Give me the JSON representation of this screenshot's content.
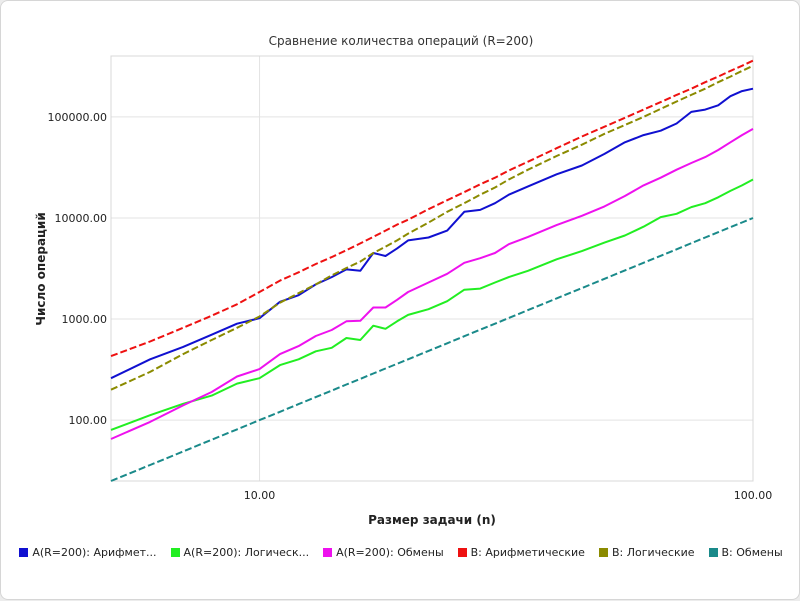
{
  "chart_data": {
    "type": "line",
    "title": "Сравнение количества операций (R=200)",
    "xlabel": "Размер задачи (n)",
    "ylabel": "Число операций",
    "x_scale": "log",
    "y_scale": "log",
    "xlim": [
      5,
      100
    ],
    "ylim": [
      25,
      400000
    ],
    "x_ticks": [
      10,
      100
    ],
    "x_tick_labels": [
      "10.00",
      "100.00"
    ],
    "y_ticks": [
      100,
      1000,
      10000,
      100000
    ],
    "y_tick_labels": [
      "100.00",
      "1000.00",
      "10000.00",
      "100000.00"
    ],
    "grid": true,
    "legend_position": "bottom",
    "x": [
      5,
      6,
      7,
      8,
      9,
      10,
      11,
      12,
      13,
      14,
      15,
      16,
      17,
      18,
      19,
      20,
      22,
      24,
      26,
      28,
      30,
      32,
      35,
      40,
      45,
      50,
      55,
      60,
      65,
      70,
      75,
      80,
      85,
      90,
      95,
      100
    ],
    "series": [
      {
        "name": "A(R=200): Арифмет...",
        "color": "#1010d0",
        "dash": "solid",
        "values": [
          260,
          400,
          530,
          700,
          900,
          1020,
          1480,
          1720,
          2200,
          2600,
          3100,
          3000,
          4500,
          4200,
          5000,
          6000,
          6400,
          7500,
          11500,
          12000,
          14000,
          17000,
          20500,
          27000,
          33000,
          43000,
          56000,
          66000,
          73000,
          86000,
          112000,
          118000,
          130000,
          160000,
          180000,
          190000
        ]
      },
      {
        "name": "A(R=200): Логическ...",
        "color": "#22ee22",
        "dash": "solid",
        "values": [
          80,
          112,
          145,
          175,
          230,
          260,
          350,
          400,
          480,
          520,
          650,
          620,
          860,
          800,
          950,
          1100,
          1250,
          1500,
          1950,
          2000,
          2300,
          2600,
          3000,
          3900,
          4700,
          5700,
          6700,
          8200,
          10200,
          11000,
          12800,
          14000,
          16000,
          18500,
          21000,
          24000
        ]
      },
      {
        "name": "A(R=200): Обмены",
        "color": "#ee11ee",
        "dash": "solid",
        "values": [
          65,
          96,
          140,
          190,
          270,
          320,
          450,
          540,
          680,
          780,
          950,
          960,
          1300,
          1300,
          1550,
          1850,
          2300,
          2800,
          3600,
          4000,
          4500,
          5500,
          6500,
          8500,
          10500,
          13000,
          16500,
          21000,
          25000,
          30000,
          35000,
          40000,
          47000,
          56000,
          66000,
          76000
        ]
      },
      {
        "name": "B: Арифметические",
        "color": "#ee1111",
        "dash": "dashed",
        "values": [
          430,
          600,
          820,
          1080,
          1400,
          1850,
          2400,
          2900,
          3500,
          4100,
          4800,
          5600,
          6500,
          7500,
          8600,
          9600,
          12200,
          15000,
          18000,
          21500,
          25000,
          29500,
          36000,
          49000,
          64000,
          80000,
          98000,
          118000,
          140000,
          165000,
          190000,
          220000,
          250000,
          285000,
          320000,
          360000
        ]
      },
      {
        "name": "B: Логические",
        "color": "#8b8b00",
        "dash": "dashed",
        "values": [
          200,
          300,
          450,
          620,
          820,
          1060,
          1450,
          1800,
          2200,
          2700,
          3200,
          3700,
          4500,
          5200,
          6000,
          7000,
          9000,
          11500,
          14000,
          17000,
          20000,
          24000,
          30000,
          41000,
          53000,
          68000,
          83000,
          100000,
          120000,
          142000,
          165000,
          190000,
          220000,
          250000,
          285000,
          320000
        ]
      },
      {
        "name": "B: Обмены",
        "color": "#1a8a8a",
        "dash": "dashed",
        "values": [
          25,
          36,
          49,
          64,
          81,
          100,
          121,
          144,
          169,
          196,
          225,
          256,
          289,
          324,
          361,
          400,
          484,
          576,
          676,
          784,
          900,
          1024,
          1225,
          1600,
          2025,
          2500,
          3025,
          3600,
          4225,
          4900,
          5625,
          6400,
          7225,
          8100,
          9025,
          10000
        ]
      }
    ]
  }
}
